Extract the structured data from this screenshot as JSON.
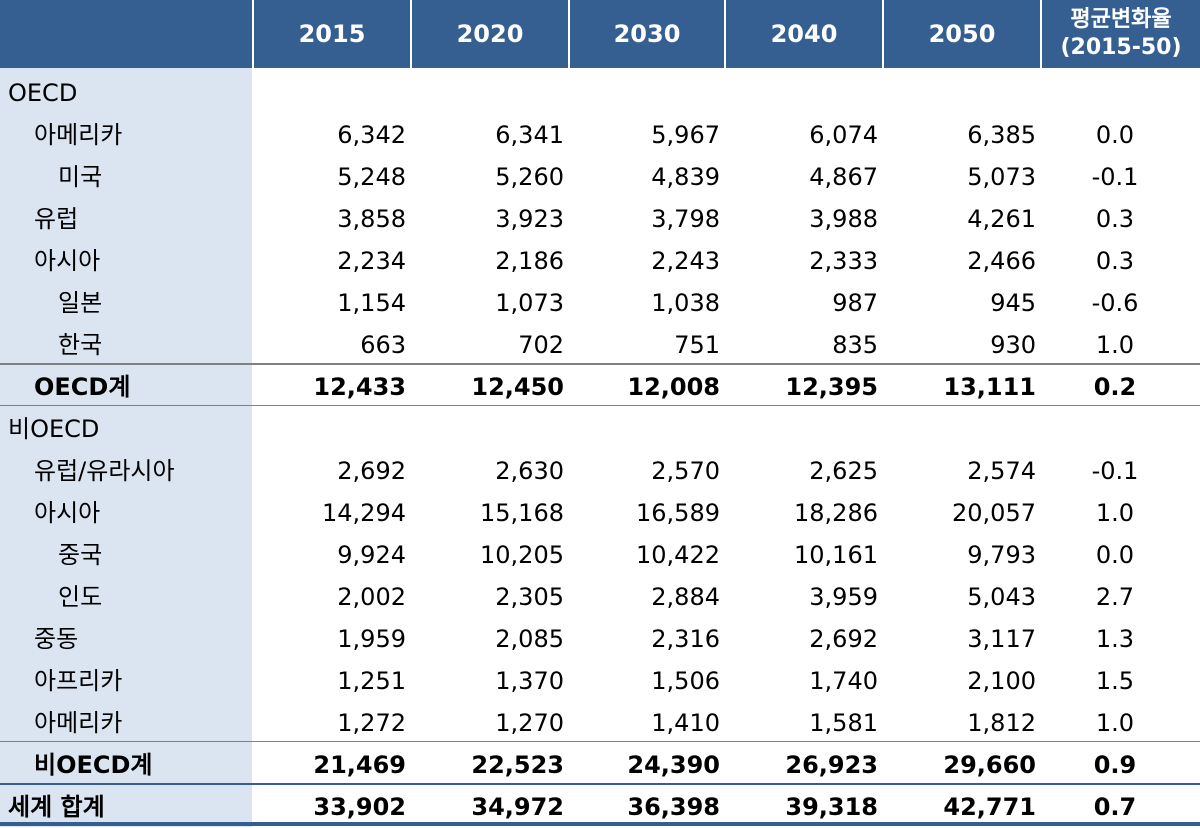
{
  "header": {
    "columns": [
      "2015",
      "2020",
      "2030",
      "2040",
      "2050"
    ],
    "rate_line1": "평균변화율",
    "rate_line2": "(2015-50)"
  },
  "rows": [
    {
      "label": "OECD",
      "indent": 0,
      "bold": false,
      "values": []
    },
    {
      "label": "아메리카",
      "indent": 1,
      "bold": false,
      "values": [
        "6,342",
        "6,341",
        "5,967",
        "6,074",
        "6,385"
      ],
      "rate": "0.0"
    },
    {
      "label": "미국",
      "indent": 2,
      "bold": false,
      "values": [
        "5,248",
        "5,260",
        "4,839",
        "4,867",
        "5,073"
      ],
      "rate": "-0.1"
    },
    {
      "label": "유럽",
      "indent": 1,
      "bold": false,
      "values": [
        "3,858",
        "3,923",
        "3,798",
        "3,988",
        "4,261"
      ],
      "rate": "0.3"
    },
    {
      "label": "아시아",
      "indent": 1,
      "bold": false,
      "values": [
        "2,234",
        "2,186",
        "2,243",
        "2,333",
        "2,466"
      ],
      "rate": "0.3"
    },
    {
      "label": "일본",
      "indent": 2,
      "bold": false,
      "values": [
        "1,154",
        "1,073",
        "1,038",
        "987",
        "945"
      ],
      "rate": "-0.6"
    },
    {
      "label": "한국",
      "indent": 2,
      "bold": false,
      "values": [
        "663",
        "702",
        "751",
        "835",
        "930"
      ],
      "rate": "1.0"
    },
    {
      "label": "OECD계",
      "indent": 1,
      "bold": true,
      "values": [
        "12,433",
        "12,450",
        "12,008",
        "12,395",
        "13,111"
      ],
      "rate": "0.2"
    },
    {
      "label": "비OECD",
      "indent": 0,
      "bold": false,
      "values": []
    },
    {
      "label": "유럽/유라시아",
      "indent": 1,
      "bold": false,
      "values": [
        "2,692",
        "2,630",
        "2,570",
        "2,625",
        "2,574"
      ],
      "rate": "-0.1"
    },
    {
      "label": "아시아",
      "indent": 1,
      "bold": false,
      "values": [
        "14,294",
        "15,168",
        "16,589",
        "18,286",
        "20,057"
      ],
      "rate": "1.0"
    },
    {
      "label": "중국",
      "indent": 2,
      "bold": false,
      "values": [
        "9,924",
        "10,205",
        "10,422",
        "10,161",
        "9,793"
      ],
      "rate": "0.0"
    },
    {
      "label": "인도",
      "indent": 2,
      "bold": false,
      "values": [
        "2,002",
        "2,305",
        "2,884",
        "3,959",
        "5,043"
      ],
      "rate": "2.7"
    },
    {
      "label": "중동",
      "indent": 1,
      "bold": false,
      "values": [
        "1,959",
        "2,085",
        "2,316",
        "2,692",
        "3,117"
      ],
      "rate": "1.3"
    },
    {
      "label": "아프리카",
      "indent": 1,
      "bold": false,
      "values": [
        "1,251",
        "1,370",
        "1,506",
        "1,740",
        "2,100"
      ],
      "rate": "1.5"
    },
    {
      "label": "아메리카",
      "indent": 1,
      "bold": false,
      "values": [
        "1,272",
        "1,270",
        "1,410",
        "1,581",
        "1,812"
      ],
      "rate": "1.0"
    },
    {
      "label": "비OECD계",
      "indent": 1,
      "bold": true,
      "values": [
        "21,469",
        "22,523",
        "24,390",
        "26,923",
        "29,660"
      ],
      "rate": "0.9"
    },
    {
      "label": "세계 합계",
      "indent": 0,
      "bold": true,
      "values": [
        "33,902",
        "34,972",
        "36,398",
        "39,318",
        "42,771"
      ],
      "rate": "0.7"
    }
  ]
}
